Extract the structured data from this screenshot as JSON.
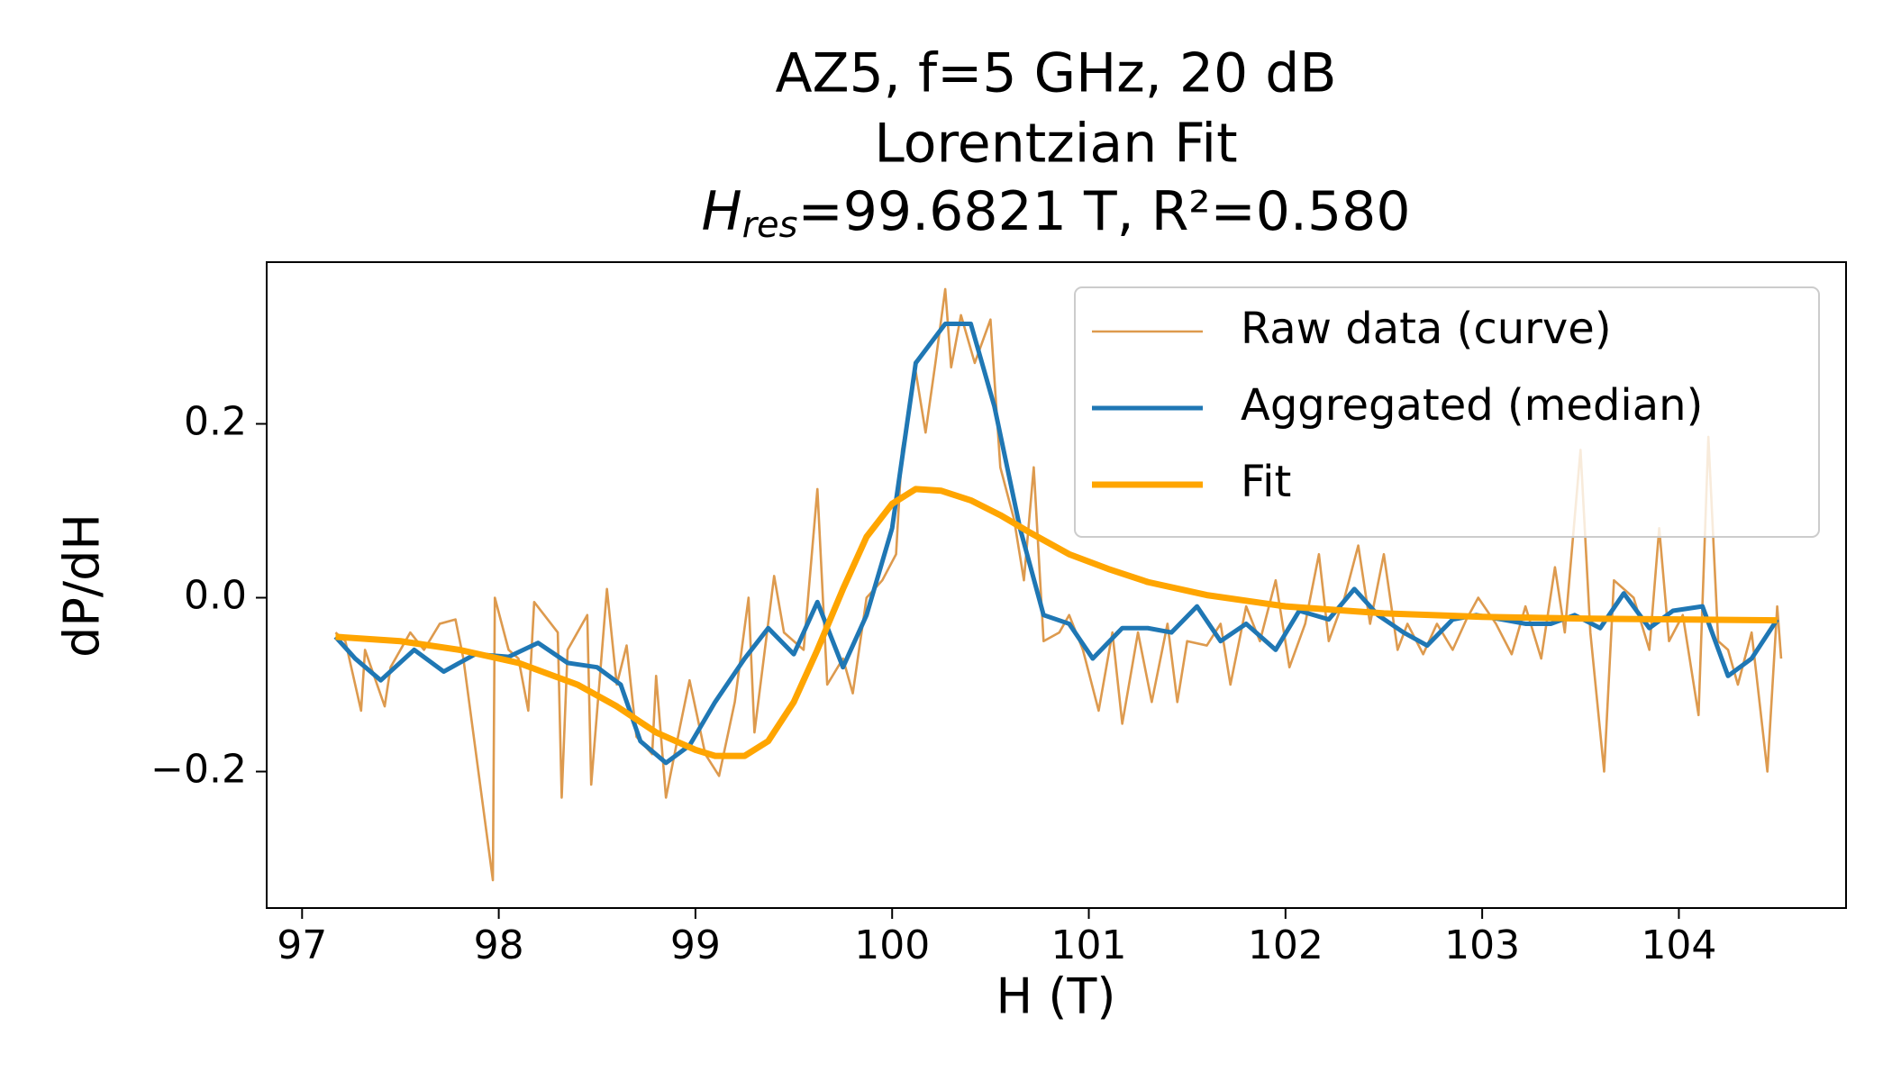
{
  "chart_data": {
    "type": "line",
    "title": [
      "AZ5, f=5 GHz, 20 dB",
      "Lorentzian Fit"
    ],
    "title_fit": {
      "symbol": "H",
      "subscript": "res",
      "text": "=99.6821 T, R²=0.580"
    },
    "x_label": "H (T)",
    "y_label": "dP/dH",
    "xlim": [
      96.82,
      104.85
    ],
    "ylim": [
      -0.357,
      0.386
    ],
    "xticks": [
      97,
      98,
      99,
      100,
      101,
      102,
      103,
      104
    ],
    "yticks": [
      {
        "value": -0.2,
        "label": "−0.2"
      },
      {
        "value": 0,
        "label": "0.0"
      },
      0.2
    ],
    "legend": "upper right",
    "series": [
      {
        "name": "Raw data (curve)",
        "color": "#dd9a4e",
        "width": 2.6,
        "x": [
          97.17,
          97.22,
          97.3,
          97.32,
          97.42,
          97.45,
          97.55,
          97.62,
          97.7,
          97.78,
          97.82,
          97.97,
          97.98,
          98.05,
          98.1,
          98.15,
          98.18,
          98.3,
          98.32,
          98.35,
          98.45,
          98.47,
          98.55,
          98.6,
          98.65,
          98.7,
          98.78,
          98.8,
          98.85,
          98.92,
          98.97,
          99.05,
          99.12,
          99.2,
          99.27,
          99.3,
          99.4,
          99.45,
          99.55,
          99.62,
          99.67,
          99.75,
          99.8,
          99.87,
          99.95,
          100.02,
          100.05,
          100.12,
          100.17,
          100.22,
          100.27,
          100.3,
          100.35,
          100.42,
          100.5,
          100.55,
          100.62,
          100.67,
          100.72,
          100.77,
          100.85,
          100.9,
          100.97,
          101.05,
          101.12,
          101.17,
          101.25,
          101.32,
          101.4,
          101.45,
          101.5,
          101.6,
          101.67,
          101.72,
          101.8,
          101.87,
          101.95,
          102.02,
          102.1,
          102.17,
          102.22,
          102.3,
          102.37,
          102.43,
          102.5,
          102.57,
          102.62,
          102.7,
          102.77,
          102.85,
          102.92,
          102.98,
          103.07,
          103.15,
          103.22,
          103.3,
          103.37,
          103.42,
          103.5,
          103.55,
          103.62,
          103.67,
          103.77,
          103.85,
          103.9,
          103.95,
          104.02,
          104.1,
          104.15,
          104.2,
          104.25,
          104.3,
          104.37,
          104.45,
          104.5,
          104.52
        ],
        "values": [
          -0.04,
          -0.05,
          -0.13,
          -0.06,
          -0.125,
          -0.08,
          -0.04,
          -0.06,
          -0.03,
          -0.025,
          -0.07,
          -0.325,
          0.0,
          -0.06,
          -0.07,
          -0.13,
          -0.005,
          -0.04,
          -0.23,
          -0.06,
          -0.02,
          -0.215,
          0.01,
          -0.1,
          -0.055,
          -0.16,
          -0.18,
          -0.09,
          -0.23,
          -0.15,
          -0.095,
          -0.18,
          -0.205,
          -0.12,
          0.0,
          -0.155,
          0.025,
          -0.04,
          -0.06,
          0.125,
          -0.1,
          -0.07,
          -0.11,
          0.0,
          0.02,
          0.05,
          0.17,
          0.26,
          0.19,
          0.27,
          0.355,
          0.265,
          0.325,
          0.27,
          0.32,
          0.15,
          0.09,
          0.02,
          0.15,
          -0.05,
          -0.04,
          -0.02,
          -0.06,
          -0.13,
          -0.04,
          -0.145,
          -0.04,
          -0.12,
          -0.03,
          -0.12,
          -0.05,
          -0.055,
          -0.03,
          -0.1,
          -0.01,
          -0.05,
          0.02,
          -0.08,
          -0.03,
          0.05,
          -0.05,
          0.0,
          0.06,
          -0.03,
          0.05,
          -0.06,
          -0.03,
          -0.065,
          -0.03,
          -0.06,
          -0.025,
          0.0,
          -0.03,
          -0.065,
          -0.01,
          -0.07,
          0.035,
          -0.04,
          0.17,
          -0.04,
          -0.2,
          0.02,
          0.0,
          -0.06,
          0.08,
          -0.05,
          -0.02,
          -0.135,
          0.185,
          -0.05,
          -0.06,
          -0.1,
          -0.04,
          -0.2,
          -0.01,
          -0.07
        ]
      },
      {
        "name": "Aggregated (median)",
        "color": "#1f77b4",
        "width": 5,
        "x": [
          97.17,
          97.27,
          97.4,
          97.57,
          97.72,
          97.88,
          98.05,
          98.2,
          98.35,
          98.5,
          98.62,
          98.72,
          98.85,
          98.97,
          99.1,
          99.25,
          99.37,
          99.5,
          99.62,
          99.75,
          99.87,
          100.0,
          100.12,
          100.27,
          100.4,
          100.52,
          100.65,
          100.77,
          100.9,
          101.02,
          101.17,
          101.3,
          101.42,
          101.55,
          101.67,
          101.8,
          101.95,
          102.07,
          102.22,
          102.35,
          102.47,
          102.6,
          102.72,
          102.85,
          102.97,
          103.1,
          103.22,
          103.35,
          103.47,
          103.6,
          103.72,
          103.85,
          103.97,
          104.12,
          104.25,
          104.37,
          104.5
        ],
        "values": [
          -0.045,
          -0.07,
          -0.095,
          -0.06,
          -0.085,
          -0.065,
          -0.068,
          -0.052,
          -0.075,
          -0.08,
          -0.1,
          -0.165,
          -0.19,
          -0.17,
          -0.12,
          -0.07,
          -0.035,
          -0.065,
          -0.005,
          -0.08,
          -0.02,
          0.08,
          0.27,
          0.315,
          0.315,
          0.22,
          0.08,
          -0.02,
          -0.03,
          -0.07,
          -0.035,
          -0.035,
          -0.04,
          -0.01,
          -0.05,
          -0.03,
          -0.06,
          -0.015,
          -0.025,
          0.01,
          -0.02,
          -0.04,
          -0.055,
          -0.025,
          -0.02,
          -0.025,
          -0.03,
          -0.03,
          -0.02,
          -0.035,
          0.005,
          -0.035,
          -0.015,
          -0.01,
          -0.09,
          -0.07,
          -0.025
        ]
      },
      {
        "name": "Fit",
        "color": "#ffa500",
        "width": 7,
        "x": [
          97.17,
          97.5,
          97.8,
          98.1,
          98.4,
          98.6,
          98.8,
          99.0,
          99.1,
          99.25,
          99.37,
          99.5,
          99.62,
          99.75,
          99.87,
          100.0,
          100.12,
          100.25,
          100.4,
          100.55,
          100.7,
          100.9,
          101.1,
          101.3,
          101.6,
          102.0,
          102.5,
          103.0,
          103.5,
          104.0,
          104.5
        ],
        "values": [
          -0.045,
          -0.05,
          -0.06,
          -0.075,
          -0.1,
          -0.125,
          -0.155,
          -0.175,
          -0.182,
          -0.182,
          -0.165,
          -0.12,
          -0.06,
          0.01,
          0.07,
          0.108,
          0.125,
          0.123,
          0.112,
          0.095,
          0.075,
          0.05,
          0.033,
          0.018,
          0.003,
          -0.01,
          -0.018,
          -0.022,
          -0.024,
          -0.025,
          -0.026
        ]
      }
    ]
  }
}
